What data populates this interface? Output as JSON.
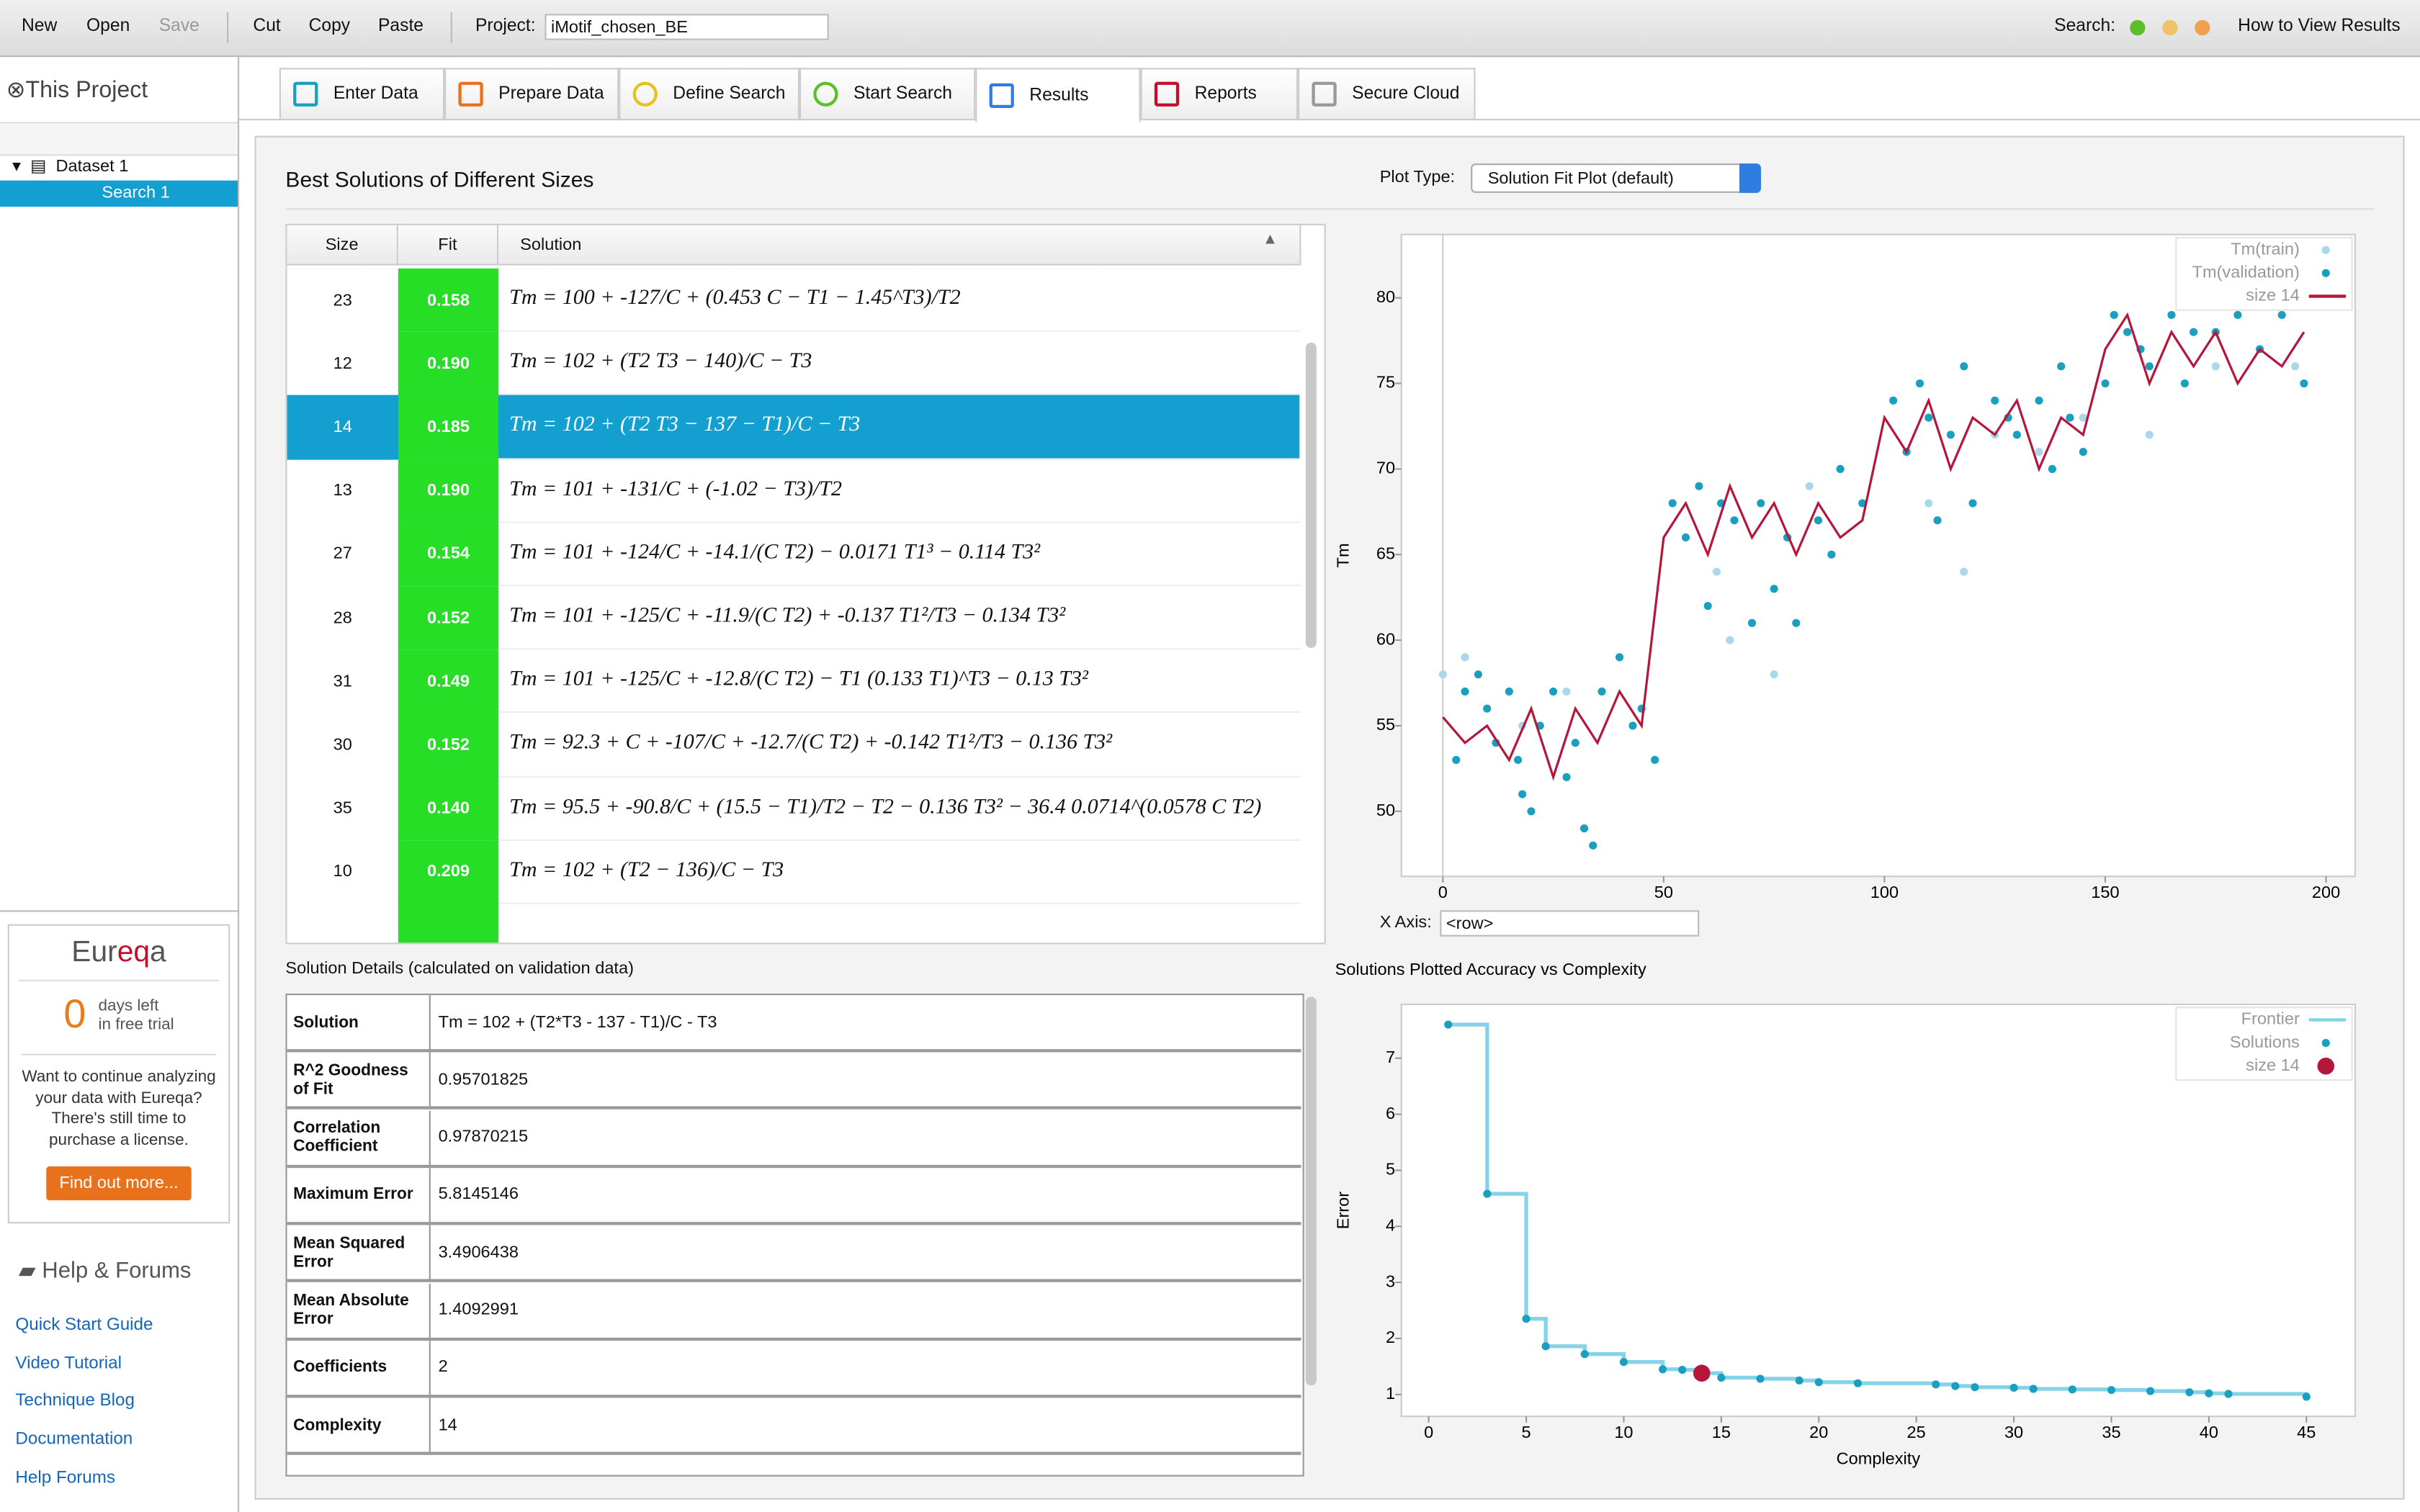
{
  "toolbar": {
    "buttons": [
      "New",
      "Open",
      "Save",
      "Cut",
      "Copy",
      "Paste"
    ],
    "project_label": "Project:",
    "project_name": "iMotif_chosen_BE",
    "search_label": "Search:",
    "help_link": "How to View Results"
  },
  "sidebar": {
    "title": "This Project",
    "tree": [
      "Dataset 1",
      "Search 1"
    ],
    "promo": {
      "brand_a": "Eur",
      "brand_b": "eq",
      "brand_c": "a",
      "days": 0,
      "days_line1": "days left",
      "days_line2": "in free trial",
      "text": "Want to continue analyzing your data with Eureqa? There's still time to purchase a license.",
      "button": "Find out more..."
    },
    "help_title": "Help & Forums",
    "links": [
      "Quick Start Guide",
      "Video Tutorial",
      "Technique Blog",
      "Documentation",
      "Help Forums"
    ]
  },
  "tabs": [
    "Enter Data",
    "Prepare Data",
    "Define Search",
    "Start Search",
    "Results",
    "Reports",
    "Secure Cloud"
  ],
  "panel": {
    "title": "Best Solutions of Different Sizes",
    "plot_type_label": "Plot Type:",
    "plot_type": "Solution Fit Plot (default)",
    "x_axis_label": "X Axis:",
    "x_axis_value": "<row>"
  },
  "solutions_table": {
    "columns": [
      "Size",
      "Fit",
      "Solution"
    ],
    "rows": [
      [
        "23",
        "0.158",
        "Tm = 100 + -127/C + (0.453 C − T1 − 1.45^T3)/T2"
      ],
      [
        "12",
        "0.190",
        "Tm = 102 + (T2 T3 − 140)/C − T3"
      ],
      [
        "14",
        "0.185",
        "Tm = 102 + (T2 T3 − 137 − T1)/C − T3"
      ],
      [
        "13",
        "0.190",
        "Tm = 101 + -131/C + (-1.02 − T3)/T2"
      ],
      [
        "27",
        "0.154",
        "Tm = 101 + -124/C + -14.1/(C T2) − 0.0171 T1³ − 0.114 T3²"
      ],
      [
        "28",
        "0.152",
        "Tm = 101 + -125/C + -11.9/(C T2) + -0.137 T1²/T3 − 0.134 T3²"
      ],
      [
        "31",
        "0.149",
        "Tm = 101 + -125/C + -12.8/(C T2) − T1 (0.133 T1)^T3 − 0.13 T3²"
      ],
      [
        "30",
        "0.152",
        "Tm = 92.3 + C + -107/C + -12.7/(C T2) + -0.142 T1²/T3 − 0.136 T3²"
      ],
      [
        "35",
        "0.140",
        "Tm = 95.5 + -90.8/C + (15.5 − T1)/T2 − T2 − 0.136 T3² − 36.4 0.0714^(0.0578 C T2)"
      ],
      [
        "10",
        "0.209",
        "Tm = 102 + (T2 − 136)/C − T3"
      ]
    ],
    "selected_row": 2
  },
  "details": {
    "title": "Solution Details (calculated on validation data)",
    "rows": [
      [
        "Solution",
        "Tm = 102 + (T2*T3 - 137 - T1)/C - T3"
      ],
      [
        "R^2 Goodness of Fit",
        "0.95701825"
      ],
      [
        "Correlation Coefficient",
        "0.97870215"
      ],
      [
        "Maximum Error",
        "5.8145146"
      ],
      [
        "Mean Squared Error",
        "3.4906438"
      ],
      [
        "Mean Absolute Error",
        "1.4092991"
      ],
      [
        "Coefficients",
        "2"
      ],
      [
        "Complexity",
        "14"
      ]
    ]
  },
  "chart_data": [
    {
      "type": "scatter",
      "ylabel": "Tm",
      "xlim": [
        -9.4,
        206.6
      ],
      "ylim": [
        46.2,
        83.7
      ],
      "xticks": [
        0,
        50,
        100,
        150,
        200
      ],
      "yticks": [
        50,
        55,
        60,
        65,
        70,
        75,
        80
      ],
      "legend": "upper right",
      "series": [
        {
          "name": "Tm(train)",
          "kind": "scatter",
          "color": "#a9d8ea",
          "x": [
            0,
            5,
            18,
            28,
            62,
            65,
            75,
            83,
            110,
            118,
            125,
            135,
            145,
            160,
            175,
            193
          ],
          "values": [
            58,
            59,
            55,
            57,
            64,
            60,
            58,
            69,
            68,
            64,
            72,
            71,
            73,
            72,
            76,
            76
          ]
        },
        {
          "name": "Tm(validation)",
          "kind": "scatter",
          "color": "#1a9fc0",
          "x": [
            3,
            5,
            8,
            10,
            12,
            15,
            17,
            18,
            20,
            22,
            25,
            28,
            30,
            32,
            34,
            36,
            40,
            43,
            45,
            48,
            52,
            55,
            58,
            60,
            63,
            66,
            70,
            72,
            75,
            78,
            80,
            85,
            88,
            90,
            95,
            102,
            105,
            108,
            110,
            112,
            115,
            118,
            120,
            125,
            128,
            130,
            135,
            138,
            140,
            142,
            145,
            150,
            152,
            155,
            158,
            160,
            165,
            168,
            170,
            175,
            180,
            185,
            190,
            195
          ],
          "values": [
            53,
            57,
            58,
            56,
            54,
            57,
            53,
            51,
            50,
            55,
            57,
            52,
            54,
            49,
            48,
            57,
            59,
            55,
            56,
            53,
            68,
            66,
            69,
            62,
            68,
            67,
            61,
            68,
            63,
            66,
            61,
            67,
            65,
            70,
            68,
            74,
            71,
            75,
            73,
            67,
            72,
            76,
            68,
            74,
            73,
            72,
            74,
            70,
            76,
            73,
            71,
            75,
            79,
            78,
            77,
            76,
            79,
            75,
            78,
            78,
            79,
            77,
            79,
            75
          ]
        },
        {
          "name": "size 14",
          "kind": "line",
          "color": "#b5173b",
          "x": [
            0,
            5,
            10,
            15,
            20,
            25,
            30,
            35,
            40,
            45,
            50,
            55,
            60,
            65,
            70,
            75,
            80,
            85,
            90,
            95,
            100,
            105,
            110,
            115,
            120,
            125,
            130,
            135,
            140,
            145,
            150,
            155,
            160,
            165,
            170,
            175,
            180,
            185,
            190,
            195
          ],
          "values": [
            55.5,
            54,
            55,
            53,
            56,
            52,
            56,
            54,
            57,
            55,
            66,
            68,
            65,
            69,
            66,
            68,
            65,
            68,
            66,
            67,
            73,
            71,
            74,
            70,
            73,
            72,
            74,
            70,
            73,
            72,
            77,
            79,
            75,
            78,
            76,
            78,
            75,
            77,
            76,
            78
          ]
        }
      ]
    },
    {
      "type": "line",
      "title": "Solutions Plotted Accuracy vs Complexity",
      "xlabel": "Complexity",
      "ylabel": "Error",
      "xlim": [
        -1.4,
        47.5
      ],
      "ylim": [
        0.61,
        7.96
      ],
      "xticks": [
        0,
        5,
        10,
        15,
        20,
        25,
        30,
        35,
        40,
        45
      ],
      "yticks": [
        1,
        2,
        3,
        4,
        5,
        6,
        7
      ],
      "legend": "upper right",
      "series": [
        {
          "name": "Frontier",
          "kind": "step",
          "color": "#86d3e8",
          "x": [
            1,
            3,
            5,
            6,
            8,
            10,
            12,
            13,
            14,
            15,
            17,
            19,
            20,
            22,
            26,
            27,
            28,
            30,
            31,
            33,
            35,
            37,
            39,
            40,
            41,
            45
          ],
          "values": [
            7.6,
            4.58,
            2.35,
            1.86,
            1.72,
            1.58,
            1.45,
            1.44,
            1.38,
            1.3,
            1.28,
            1.25,
            1.22,
            1.2,
            1.18,
            1.15,
            1.13,
            1.12,
            1.1,
            1.09,
            1.08,
            1.06,
            1.04,
            1.02,
            1.01,
            0.96
          ]
        },
        {
          "name": "Solutions",
          "kind": "scatter",
          "color": "#1a9fc0",
          "x": [
            1,
            3,
            5,
            6,
            8,
            10,
            12,
            13,
            14,
            15,
            17,
            19,
            20,
            22,
            26,
            27,
            28,
            30,
            31,
            33,
            35,
            37,
            39,
            40,
            41,
            45
          ],
          "values": [
            7.6,
            4.58,
            2.35,
            1.86,
            1.72,
            1.58,
            1.45,
            1.44,
            1.38,
            1.3,
            1.28,
            1.25,
            1.22,
            1.2,
            1.18,
            1.15,
            1.13,
            1.12,
            1.1,
            1.09,
            1.08,
            1.06,
            1.04,
            1.02,
            1.01,
            0.96
          ]
        },
        {
          "name": "size 14",
          "kind": "scatter",
          "marker": "large",
          "color": "#b5173b",
          "x": [
            14
          ],
          "values": [
            1.38
          ]
        }
      ]
    }
  ]
}
